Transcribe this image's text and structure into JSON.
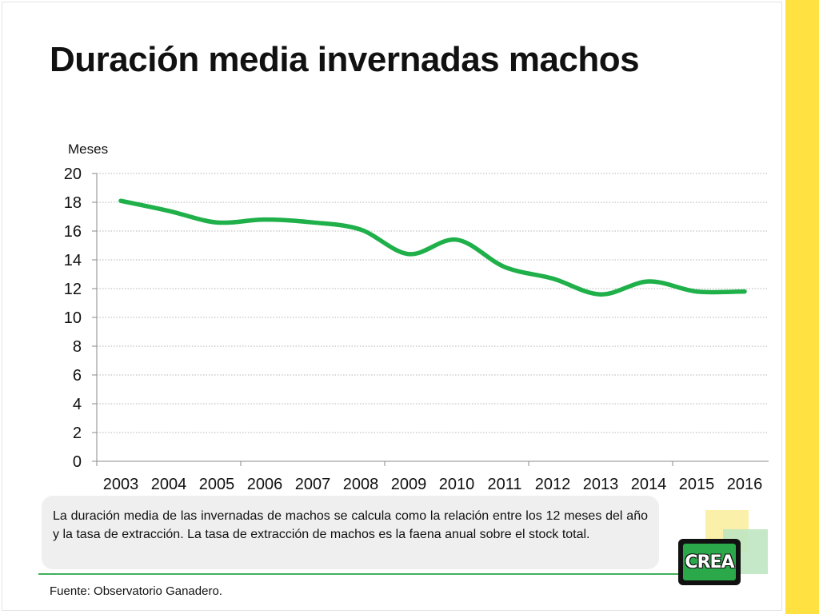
{
  "slide": {
    "title": "Duración media invernadas machos",
    "note": "La duración media de las invernadas de machos se calcula como la relación entre los 12 meses del año y la tasa de extracción. La tasa de extracción de machos es la faena anual sobre el stock total.",
    "source": "Fuente: Observatorio Ganadero.",
    "logo_text": "CREA"
  },
  "colors": {
    "line": "#1fb04a",
    "side_bar": "#ffe141",
    "rule": "#41b05a",
    "note_bg": "#efefef"
  },
  "chart_data": {
    "type": "line",
    "title": "",
    "xlabel": "",
    "ylabel": "Meses",
    "categories": [
      "2003",
      "2004",
      "2005",
      "2006",
      "2007",
      "2008",
      "2009",
      "2010",
      "2011",
      "2012",
      "2013",
      "2014",
      "2015",
      "2016"
    ],
    "series": [
      {
        "values": [
          18.1,
          17.4,
          16.6,
          16.8,
          16.6,
          16.1,
          14.4,
          15.4,
          13.5,
          12.7,
          11.6,
          12.5,
          11.8,
          11.8
        ]
      }
    ],
    "ylim": [
      0,
      20
    ],
    "yticks": [
      0,
      2,
      4,
      6,
      8,
      10,
      12,
      14,
      16,
      18,
      20
    ],
    "grid": true,
    "legend": "none"
  }
}
